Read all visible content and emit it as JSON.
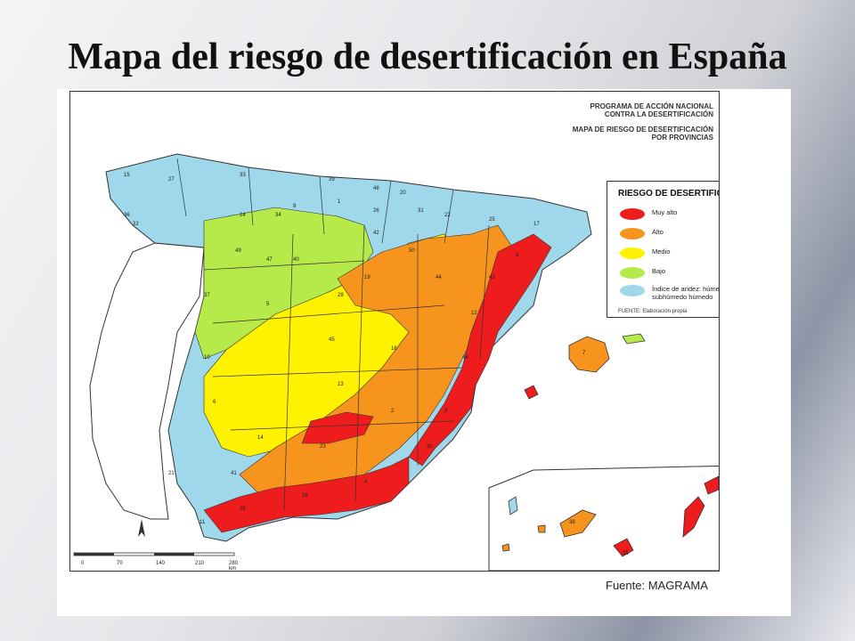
{
  "slide": {
    "title": "Mapa del riesgo de desertificación en España"
  },
  "map": {
    "program_title": [
      "PROGRAMA DE ACCIÓN NACIONAL",
      "CONTRA LA DESERTIFICACIÓN",
      "MAPA DE RIESGO DE DESERTIFICACIÓN",
      "POR PROVINCIAS"
    ],
    "legend": {
      "title": "RIESGO DE DESERTIFICACIÓN",
      "items": [
        {
          "label": "Muy alto",
          "color": "#ee1c1c"
        },
        {
          "label": "Alto",
          "color": "#f7941d"
        },
        {
          "label": "Medio",
          "color": "#fff200"
        },
        {
          "label": "Bajo",
          "color": "#b5ea4a"
        },
        {
          "label": "Índice de aridez: húmedo o subhúmedo húmedo",
          "color": "#9fd8ea"
        }
      ],
      "source": "FUENTE: Elaboración propia"
    },
    "scale_labels": [
      "0",
      "70",
      "140",
      "210",
      "280 km"
    ],
    "province_labels": [
      "15",
      "27",
      "33",
      "39",
      "48",
      "20",
      "31",
      "22",
      "25",
      "17",
      "8",
      "43",
      "12",
      "46",
      "3",
      "30",
      "4",
      "18",
      "29",
      "11",
      "21",
      "41",
      "14",
      "23",
      "2",
      "16",
      "45",
      "13",
      "6",
      "10",
      "37",
      "5",
      "40",
      "28",
      "19",
      "42",
      "9",
      "34",
      "24",
      "49",
      "47",
      "32",
      "36",
      "26",
      "1",
      "44",
      "50",
      "7",
      "35",
      "38"
    ],
    "colors": {
      "water": "#ffffff",
      "border": "#333333"
    }
  },
  "source_note": "Fuente: MAGRAMA"
}
